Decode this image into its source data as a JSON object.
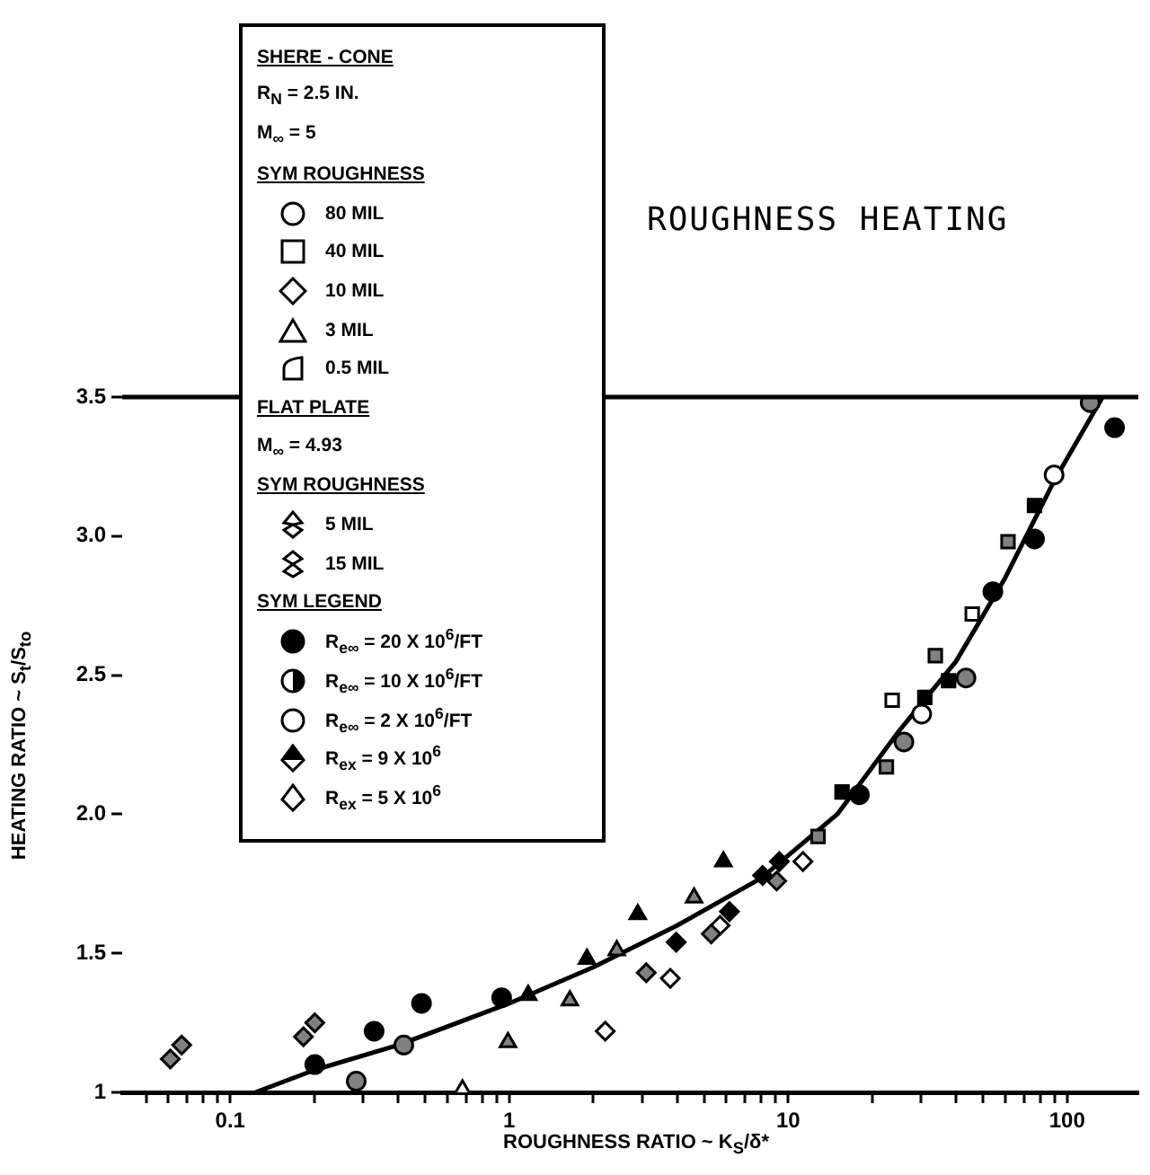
{
  "chart_data": {
    "type": "scatter",
    "title": "ROUGHNESS HEATING",
    "xlabel": "ROUGHNESS RATIO ~ K$_{S}$/δ*",
    "ylabel": "HEATING RATIO ~ S$_{t}$/S$_{to}$",
    "log": "x",
    "grid": false,
    "legend": false,
    "xlim": [
      0.041,
      180
    ],
    "ylim": [
      1,
      3.5
    ],
    "xticks": [
      {
        "value": 0.05,
        "label": null
      },
      {
        "value": 0.06,
        "label": null
      },
      {
        "value": 0.07,
        "label": null
      },
      {
        "value": 0.08,
        "label": null
      },
      {
        "value": 0.09,
        "label": null
      },
      {
        "value": 0.1,
        "label": "0.1"
      },
      {
        "value": 0.2,
        "label": null
      },
      {
        "value": 0.3,
        "label": null
      },
      {
        "value": 0.4,
        "label": null
      },
      {
        "value": 0.5,
        "label": null
      },
      {
        "value": 0.6,
        "label": null
      },
      {
        "value": 0.7,
        "label": null
      },
      {
        "value": 0.8,
        "label": null
      },
      {
        "value": 0.9,
        "label": null
      },
      1,
      {
        "value": 2,
        "label": null
      },
      {
        "value": 3,
        "label": null
      },
      {
        "value": 4,
        "label": null
      },
      {
        "value": 5,
        "label": null
      },
      {
        "value": 6,
        "label": null
      },
      {
        "value": 7,
        "label": null
      },
      {
        "value": 8,
        "label": null
      },
      {
        "value": 9,
        "label": null
      },
      10,
      {
        "value": 20,
        "label": null
      },
      {
        "value": 30,
        "label": null
      },
      {
        "value": 40,
        "label": null
      },
      {
        "value": 50,
        "label": null
      },
      {
        "value": 60,
        "label": null
      },
      {
        "value": 70,
        "label": null
      },
      {
        "value": 80,
        "label": null
      },
      {
        "value": 90,
        "label": null
      },
      100
    ],
    "yticks": [
      1,
      1.5,
      {
        "value": 2,
        "label": "2.0"
      },
      2.5,
      {
        "value": 3,
        "label": "3.0"
      },
      3.5
    ],
    "series": [
      {
        "marker": "circle",
        "color": "#000000",
        "x": [
          18,
          54.2,
          76.4,
          148
        ],
        "values": [
          2.07,
          2.8,
          2.99,
          3.39
        ]
      },
      {
        "marker": "circle",
        "color": "#808080",
        "x": [
          26,
          43.4,
          121
        ],
        "values": [
          2.26,
          2.49,
          3.48
        ]
      },
      {
        "marker": "circle",
        "color": "#ffffff",
        "x": [
          30.1,
          89.8
        ],
        "values": [
          2.36,
          3.22
        ]
      },
      {
        "marker": "square",
        "color": "#000000",
        "x": [
          15.6,
          30.9,
          37.6,
          76.4
        ],
        "values": [
          2.08,
          2.42,
          2.48,
          3.11
        ]
      },
      {
        "marker": "square",
        "color": "#808080",
        "x": [
          12.8,
          15.2,
          22.5,
          33.7,
          61.4
        ],
        "values": [
          1.92,
          null,
          2.17,
          2.57,
          2.98
        ]
      },
      {
        "marker": "square",
        "color": "#ffffff",
        "x": [
          23.6,
          45.7
        ],
        "values": [
          2.41,
          2.72
        ]
      },
      {
        "marker": "diamond",
        "color": "#000000",
        "x": [
          3.97,
          6.16,
          8.1,
          9.3
        ],
        "values": [
          1.54,
          1.65,
          1.78,
          1.83
        ]
      },
      {
        "marker": "diamond",
        "color": "#808080",
        "x": [
          3.1,
          5.3,
          9.1
        ],
        "values": [
          1.43,
          1.57,
          1.76
        ]
      },
      {
        "marker": "diamond",
        "color": "#ffffff",
        "x": [
          2.21,
          3.78,
          5.7,
          11.3
        ],
        "values": [
          1.22,
          1.41,
          1.6,
          1.83
        ]
      },
      {
        "marker": "triangle",
        "color": "#000000",
        "x": [
          1.17,
          1.9,
          2.89,
          5.86
        ],
        "values": [
          1.35,
          1.48,
          1.64,
          1.83
        ]
      },
      {
        "marker": "triangle",
        "color": "#808080",
        "x": [
          0.99,
          1.65,
          2.43,
          4.6
        ],
        "values": [
          1.18,
          1.33,
          1.51,
          1.7
        ]
      },
      {
        "marker": "triangle",
        "color": "#ffffff",
        "x": [
          0.68
        ],
        "values": [
          1.01
        ]
      },
      {
        "marker": "circle",
        "color": "#000000",
        "x": [
          0.201,
          0.328,
          0.485,
          0.94
        ],
        "values": [
          1.1,
          1.22,
          1.32,
          1.34
        ]
      },
      {
        "marker": "circle",
        "color": "#808080",
        "x": [
          0.283,
          0.419
        ],
        "values": [
          1.04,
          1.17
        ]
      },
      {
        "marker": "diamond",
        "color": "#808080",
        "x": [
          0.061,
          0.067,
          0.183,
          0.201
        ],
        "values": [
          1.12,
          1.17,
          1.2,
          1.25
        ]
      },
      {
        "type": "line",
        "marker": "none",
        "color": "#000000",
        "x": [
          0.123,
          0.2,
          0.4,
          1,
          2,
          4,
          8,
          15,
          25,
          40,
          60,
          90,
          134
        ],
        "values": [
          1,
          1.08,
          1.17,
          1.32,
          1.45,
          1.6,
          1.77,
          2,
          2.3,
          2.55,
          2.85,
          3.2,
          3.5
        ]
      }
    ],
    "annotations": [
      "SHERE - CONE",
      "R$_{N}$ = 2.5 IN.",
      "M$_{∞}$ = 5",
      "SYM ROUGHNESS",
      "80 MIL",
      "40 MIL",
      "10 MIL",
      "3 MIL",
      "0.5 MIL",
      "FLAT PLATE",
      "M$_{∞}$ = 4.93",
      "SYM ROUGHNESS",
      "5 MIL",
      "15 MIL",
      "SYM LEGEND",
      "R$_{e∞}$ = 20 X 10$^{6}$/FT",
      "R$_{e∞}$ = 10 X 10$^{6}$/FT",
      "R$_{e∞}$ = 2 X 10$^{6}$/FT",
      "R$_{ex}$ = 9 X 10$^{6}$",
      "R$_{ex}$ = 5 X 10$^{6}$"
    ]
  }
}
